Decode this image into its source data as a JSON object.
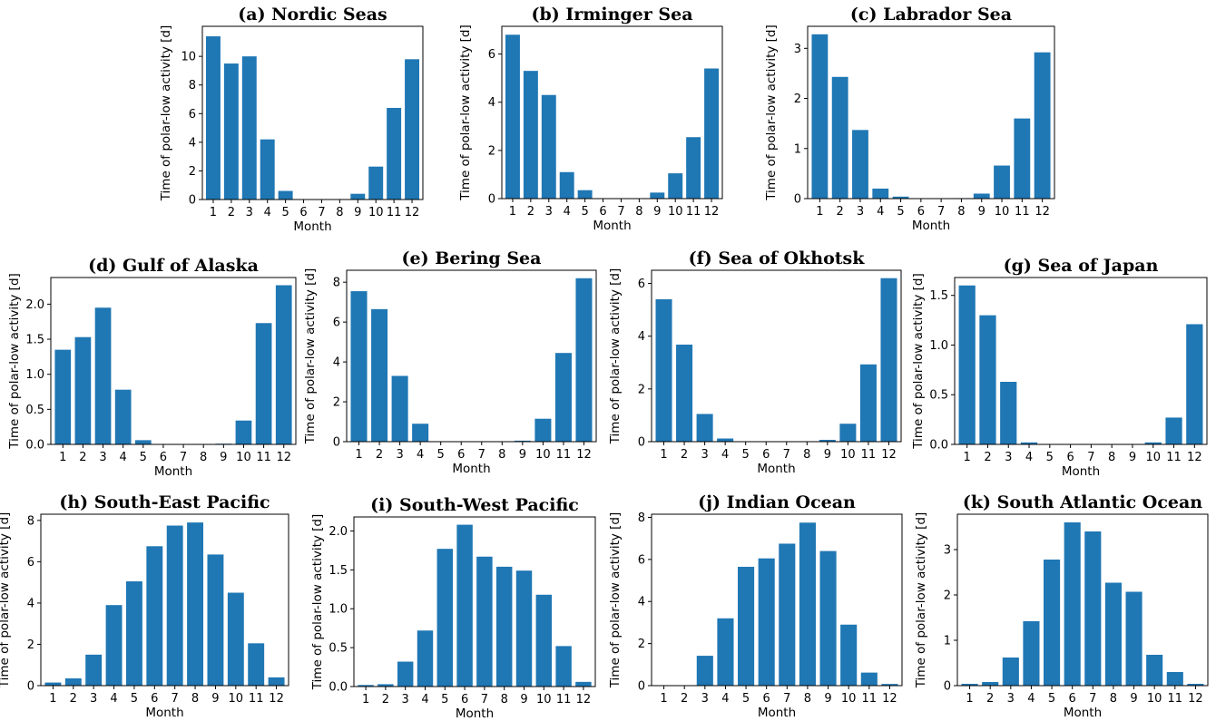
{
  "chart_data": [
    {
      "type": "bar",
      "title": "(a) Nordic Seas",
      "xlabel": "Month",
      "ylabel": "Time of polar-low activity [d]",
      "categories": [
        "1",
        "2",
        "3",
        "4",
        "5",
        "6",
        "7",
        "8",
        "9",
        "10",
        "11",
        "12"
      ],
      "values": [
        11.4,
        9.5,
        10.0,
        4.2,
        0.6,
        0,
        0,
        0.03,
        0.4,
        2.3,
        6.4,
        9.8
      ],
      "ylim": [
        0,
        12.1
      ],
      "yticks": [
        0,
        2,
        4,
        6,
        8,
        10
      ],
      "ytick_labels": [
        "0",
        "2",
        "4",
        "6",
        "8",
        "10"
      ],
      "color": "#1f77b4"
    },
    {
      "type": "bar",
      "title": "(b) Irminger Sea",
      "xlabel": "Month",
      "ylabel": "Time of polar-low activity [d]",
      "categories": [
        "1",
        "2",
        "3",
        "4",
        "5",
        "6",
        "7",
        "8",
        "9",
        "10",
        "11",
        "12"
      ],
      "values": [
        6.8,
        5.3,
        4.3,
        1.1,
        0.35,
        0,
        0,
        0,
        0.25,
        1.05,
        2.55,
        5.4
      ],
      "ylim": [
        0,
        7.15
      ],
      "yticks": [
        0,
        2,
        4,
        6
      ],
      "ytick_labels": [
        "0",
        "2",
        "4",
        "6"
      ],
      "color": "#1f77b4"
    },
    {
      "type": "bar",
      "title": "(c) Labrador Sea",
      "xlabel": "Month",
      "ylabel": "Time of polar-low activity [d]",
      "categories": [
        "1",
        "2",
        "3",
        "4",
        "5",
        "6",
        "7",
        "8",
        "9",
        "10",
        "11",
        "12"
      ],
      "values": [
        3.28,
        2.43,
        1.37,
        0.2,
        0.04,
        0,
        0,
        0.01,
        0.1,
        0.66,
        1.6,
        2.92
      ],
      "ylim": [
        0,
        3.44
      ],
      "yticks": [
        0,
        1,
        2,
        3
      ],
      "ytick_labels": [
        "0",
        "1",
        "2",
        "3"
      ],
      "color": "#1f77b4"
    },
    {
      "type": "bar",
      "title": "(d) Gulf of Alaska",
      "xlabel": "Month",
      "ylabel": "Time of polar-low activity [d]",
      "categories": [
        "1",
        "2",
        "3",
        "4",
        "5",
        "6",
        "7",
        "8",
        "9",
        "10",
        "11",
        "12"
      ],
      "values": [
        1.35,
        1.53,
        1.95,
        0.78,
        0.06,
        0,
        0,
        0,
        0.01,
        0.34,
        1.73,
        2.27
      ],
      "ylim": [
        0,
        2.38
      ],
      "yticks": [
        0,
        0.5,
        1,
        1.5,
        2
      ],
      "ytick_labels": [
        "0.0",
        "0.5",
        "1.0",
        "1.5",
        "2.0"
      ],
      "color": "#1f77b4"
    },
    {
      "type": "bar",
      "title": "(e) Bering Sea",
      "xlabel": "Month",
      "ylabel": "Time of polar-low activity [d]",
      "categories": [
        "1",
        "2",
        "3",
        "4",
        "5",
        "6",
        "7",
        "8",
        "9",
        "10",
        "11",
        "12"
      ],
      "values": [
        7.55,
        6.65,
        3.3,
        0.9,
        0,
        0,
        0,
        0,
        0.05,
        1.15,
        4.45,
        8.2
      ],
      "ylim": [
        0,
        8.6
      ],
      "yticks": [
        0,
        2,
        4,
        6,
        8
      ],
      "ytick_labels": [
        "0",
        "2",
        "4",
        "6",
        "8"
      ],
      "color": "#1f77b4"
    },
    {
      "type": "bar",
      "title": "(f) Sea of Okhotsk",
      "xlabel": "Month",
      "ylabel": "Time of polar-low activity [d]",
      "categories": [
        "1",
        "2",
        "3",
        "4",
        "5",
        "6",
        "7",
        "8",
        "9",
        "10",
        "11",
        "12"
      ],
      "values": [
        5.4,
        3.68,
        1.05,
        0.12,
        0,
        0,
        0,
        0,
        0.07,
        0.68,
        2.93,
        6.2
      ],
      "ylim": [
        0,
        6.5
      ],
      "yticks": [
        0,
        2,
        4,
        6
      ],
      "ytick_labels": [
        "0",
        "2",
        "4",
        "6"
      ],
      "color": "#1f77b4"
    },
    {
      "type": "bar",
      "title": "(g) Sea of Japan",
      "xlabel": "Month",
      "ylabel": "Time of polar-low activity [d]",
      "categories": [
        "1",
        "2",
        "3",
        "4",
        "5",
        "6",
        "7",
        "8",
        "9",
        "10",
        "11",
        "12"
      ],
      "values": [
        1.6,
        1.3,
        0.63,
        0.02,
        0,
        0,
        0,
        0,
        0,
        0.02,
        0.27,
        1.21
      ],
      "ylim": [
        0,
        1.68
      ],
      "yticks": [
        0,
        0.5,
        1,
        1.5
      ],
      "ytick_labels": [
        "0.0",
        "0.5",
        "1.0",
        "1.5"
      ],
      "color": "#1f77b4"
    },
    {
      "type": "bar",
      "title": "(h) South-East Pacific",
      "xlabel": "Month",
      "ylabel": "Time of polar-low activity [d]",
      "categories": [
        "1",
        "2",
        "3",
        "4",
        "5",
        "6",
        "7",
        "8",
        "9",
        "10",
        "11",
        "12"
      ],
      "values": [
        0.15,
        0.35,
        1.5,
        3.9,
        5.05,
        6.75,
        7.75,
        7.9,
        6.35,
        4.5,
        2.05,
        0.4
      ],
      "ylim": [
        0,
        8.3
      ],
      "yticks": [
        0,
        2,
        4,
        6,
        8
      ],
      "ytick_labels": [
        "0",
        "2",
        "4",
        "6",
        "8"
      ],
      "color": "#1f77b4"
    },
    {
      "type": "bar",
      "title": "(i) South-West Pacific",
      "xlabel": "Month",
      "ylabel": "Time of polar-low activity [d]",
      "categories": [
        "1",
        "2",
        "3",
        "4",
        "5",
        "6",
        "7",
        "8",
        "9",
        "10",
        "11",
        "12"
      ],
      "values": [
        0.02,
        0.03,
        0.32,
        0.72,
        1.77,
        2.08,
        1.67,
        1.54,
        1.49,
        1.18,
        0.52,
        0.06
      ],
      "ylim": [
        0,
        2.18
      ],
      "yticks": [
        0,
        0.5,
        1,
        1.5,
        2
      ],
      "ytick_labels": [
        "0.0",
        "0.5",
        "1.0",
        "1.5",
        "2.0"
      ],
      "color": "#1f77b4"
    },
    {
      "type": "bar",
      "title": "(j) Indian Ocean",
      "xlabel": "Month",
      "ylabel": "Time of polar-low activity [d]",
      "categories": [
        "1",
        "2",
        "3",
        "4",
        "5",
        "6",
        "7",
        "8",
        "9",
        "10",
        "11",
        "12"
      ],
      "values": [
        0,
        0.02,
        1.42,
        3.2,
        5.65,
        6.05,
        6.75,
        7.75,
        6.4,
        2.9,
        0.62,
        0.08
      ],
      "ylim": [
        0,
        8.15
      ],
      "yticks": [
        0,
        2,
        4,
        6,
        8
      ],
      "ytick_labels": [
        "0",
        "2",
        "4",
        "6",
        "8"
      ],
      "color": "#1f77b4"
    },
    {
      "type": "bar",
      "title": "(k) South Atlantic Ocean",
      "xlabel": "Month",
      "ylabel": "Time of polar-low activity [d]",
      "categories": [
        "1",
        "2",
        "3",
        "4",
        "5",
        "6",
        "7",
        "8",
        "9",
        "10",
        "11",
        "12"
      ],
      "values": [
        0.04,
        0.08,
        0.62,
        1.42,
        2.78,
        3.6,
        3.4,
        2.27,
        2.07,
        0.68,
        0.3,
        0.04
      ],
      "ylim": [
        0,
        3.78
      ],
      "yticks": [
        0,
        1,
        2,
        3
      ],
      "ytick_labels": [
        "0",
        "1",
        "2",
        "3"
      ],
      "color": "#1f77b4"
    }
  ]
}
